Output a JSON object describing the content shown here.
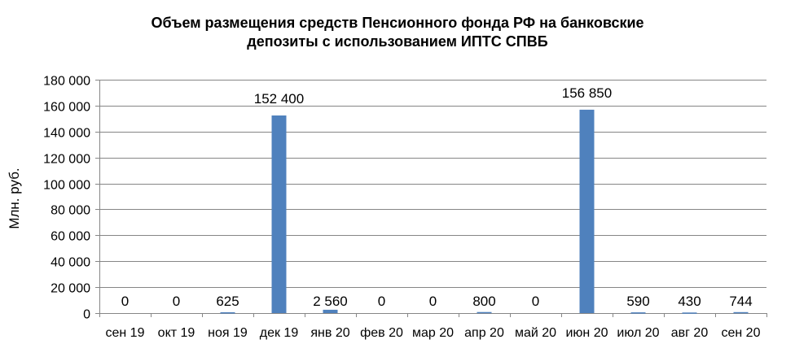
{
  "chart_data": {
    "type": "bar",
    "title_lines": [
      "Объем размещения средств Пенсионного фонда РФ  на банковские",
      "депозиты с использованием ИПТС СПВБ"
    ],
    "xlabel": "",
    "ylabel": "Млн. руб.",
    "ylim": [
      0,
      180000
    ],
    "yticks": [
      0,
      20000,
      40000,
      60000,
      80000,
      100000,
      120000,
      140000,
      160000,
      180000
    ],
    "ytick_labels": [
      "0",
      "20 000",
      "40 000",
      "60 000",
      "80 000",
      "100 000",
      "120 000",
      "140 000",
      "160 000",
      "180 000"
    ],
    "categories": [
      "сен 19",
      "окт 19",
      "ноя 19",
      "дек 19",
      "янв 20",
      "фев 20",
      "мар 20",
      "апр 20",
      "май 20",
      "июн 20",
      "июл 20",
      "авг 20",
      "сен 20"
    ],
    "values": [
      0,
      0,
      625,
      152400,
      2560,
      0,
      0,
      800,
      0,
      156850,
      590,
      430,
      744
    ],
    "data_labels": [
      "0",
      "0",
      "625",
      "152 400",
      "2 560",
      "0",
      "0",
      "800",
      "0",
      "156 850",
      "590",
      "430",
      "744"
    ],
    "grid": true,
    "legend": "none",
    "colors": {
      "bar": "#4f81bd",
      "grid": "#868686",
      "axis": "#868686"
    }
  }
}
